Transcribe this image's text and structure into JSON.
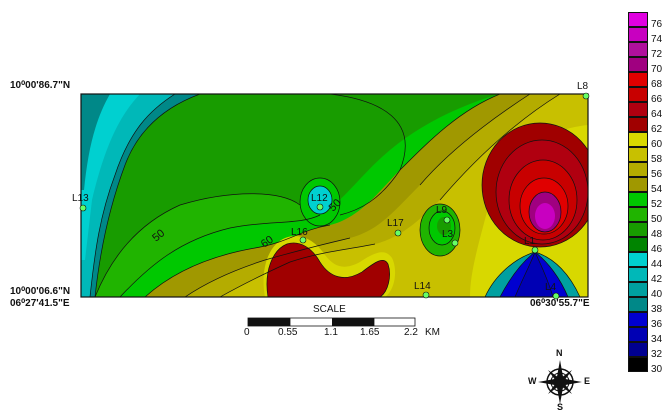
{
  "coordinates": {
    "top_left_lat": "10⁰00'86.7\"N",
    "bottom_left_lat": "10⁰00'06.6\"N",
    "bottom_left_lon": "06⁰27'41.5\"E",
    "bottom_right_lon": "06⁰30'55.7\"E"
  },
  "stations": [
    {
      "id": "L8"
    },
    {
      "id": "L13"
    },
    {
      "id": "L12"
    },
    {
      "id": "L16"
    },
    {
      "id": "L17"
    },
    {
      "id": "L9"
    },
    {
      "id": "L3"
    },
    {
      "id": "L14"
    },
    {
      "id": "L1"
    },
    {
      "id": "L4"
    }
  ],
  "contour_labels": [
    "50",
    "60",
    "50"
  ],
  "scale": {
    "title": "SCALE",
    "ticks": [
      "0",
      "0.55",
      "1.1",
      "1.65",
      "2.2"
    ],
    "unit": "KM"
  },
  "compass": {
    "n": "N",
    "s": "S",
    "e": "E",
    "w": "W"
  },
  "legend": {
    "levels": [
      "76",
      "74",
      "72",
      "70",
      "68",
      "66",
      "64",
      "62",
      "60",
      "58",
      "56",
      "54",
      "52",
      "50",
      "48",
      "46",
      "44",
      "42",
      "40",
      "38",
      "36",
      "34",
      "32",
      "30"
    ],
    "colors": [
      "#e000e0",
      "#c800c0",
      "#b0109c",
      "#a00080",
      "#e00000",
      "#c80000",
      "#b00010",
      "#a00000",
      "#d8d800",
      "#c8c000",
      "#b4ac00",
      "#a09800",
      "#00c800",
      "#20b400",
      "#189c00",
      "#008400",
      "#00d0d0",
      "#00b8b8",
      "#00a0a0",
      "#008888",
      "#0000d0",
      "#0000b4",
      "#000090",
      "#000000"
    ]
  }
}
